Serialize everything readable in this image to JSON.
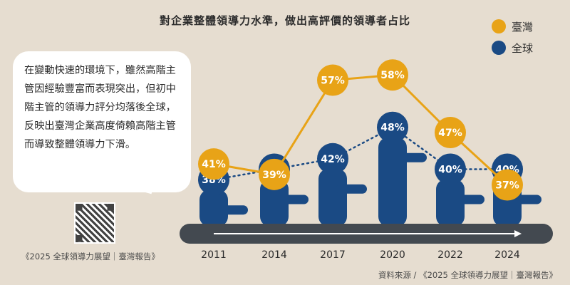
{
  "title": "對企業整體領導力水準，做出高評價的領導者占比",
  "legend": [
    {
      "label": "臺灣",
      "color": "#e8a317"
    },
    {
      "label": "全球",
      "color": "#1a4a84"
    }
  ],
  "bubble_text": "在變動快速的環境下，雖然高階主管因經驗豐富而表現突出，但初中階主管的領導力評分均落後全球，反映出臺灣企業高度倚賴高階主管而導致整體領導力下滑。",
  "source_left": "《2025 全球領導力展望｜臺灣報告》",
  "source_right": "資料來源 / 《2025 全球領導力展望｜臺灣報告》",
  "colors": {
    "taiwan": "#e8a317",
    "global": "#1a4a84",
    "background": "#e6ddd0",
    "timeline": "#434950"
  },
  "chart_data": {
    "type": "line",
    "title": "對企業整體領導力水準，做出高評價的領導者占比",
    "categories": [
      "2011",
      "2014",
      "2017",
      "2020",
      "2022",
      "2024"
    ],
    "unit": "%",
    "series": [
      {
        "name": "臺灣",
        "values": [
          41,
          39,
          57,
          58,
          47,
          37
        ],
        "color": "#e8a317",
        "line": "solid"
      },
      {
        "name": "全球",
        "values": [
          38,
          40,
          42,
          48,
          40,
          40
        ],
        "color": "#1a4a84",
        "line": "dotted"
      }
    ]
  }
}
